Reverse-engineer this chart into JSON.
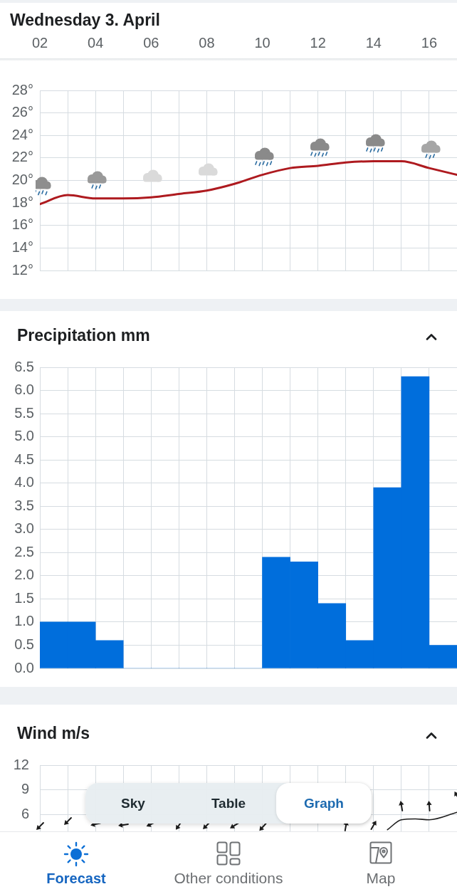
{
  "chart_data": [
    {
      "type": "line",
      "title": "Wednesday 3. April",
      "x": [
        2,
        3,
        4,
        5,
        6,
        7,
        8,
        9,
        10,
        11,
        12,
        13,
        14,
        15,
        16,
        17
      ],
      "series": [
        {
          "color": "#ae1a1f",
          "values": [
            17.9,
            18.7,
            18.4,
            18.4,
            18.5,
            18.8,
            19.1,
            19.7,
            20.5,
            21.1,
            21.3,
            21.6,
            21.7,
            21.7,
            21.1,
            20.5
          ]
        }
      ],
      "xlim": [
        2,
        17
      ],
      "xticks": [
        {
          "value": 2,
          "label": "02"
        },
        {
          "value": 3,
          "label": null
        },
        {
          "value": 4,
          "label": "04"
        },
        {
          "value": 5,
          "label": null
        },
        {
          "value": 6,
          "label": "06"
        },
        {
          "value": 7,
          "label": null
        },
        {
          "value": 8,
          "label": "08"
        },
        {
          "value": 9,
          "label": null
        },
        10,
        {
          "value": 11,
          "label": null
        },
        12,
        {
          "value": 13,
          "label": null
        },
        14,
        {
          "value": 15,
          "label": null
        },
        16,
        {
          "value": 17,
          "label": null
        }
      ],
      "ylim": [
        12,
        28
      ],
      "yticks": [
        {
          "value": 12,
          "label": "12°"
        },
        {
          "value": 14,
          "label": "14°"
        },
        {
          "value": 16,
          "label": "16°"
        },
        {
          "value": 18,
          "label": "18°"
        },
        {
          "value": 20,
          "label": "20°"
        },
        {
          "value": 22,
          "label": "22°"
        },
        {
          "value": 24,
          "label": "24°"
        },
        {
          "value": 26,
          "label": "26°"
        },
        {
          "value": 28,
          "label": "28°"
        }
      ],
      "grid": true,
      "marker": "none"
    },
    {
      "type": "bar",
      "title": "Precipitation mm",
      "categories": [
        null,
        null,
        null,
        null,
        null,
        null,
        null,
        null,
        null,
        null,
        null,
        null,
        null,
        null,
        null
      ],
      "values": [
        1.0,
        1.0,
        0.6,
        0,
        0,
        0,
        0,
        0,
        2.4,
        2.3,
        1.4,
        0.6,
        3.9,
        6.3,
        0.5
      ],
      "color": "#006edc",
      "ylim": [
        0,
        6.5
      ],
      "yticks": [
        {
          "value": 0,
          "label": "0.0"
        },
        0.5,
        {
          "value": 1,
          "label": "1.0"
        },
        1.5,
        {
          "value": 2,
          "label": "2.0"
        },
        2.5,
        {
          "value": 3,
          "label": "3.0"
        },
        3.5,
        {
          "value": 4,
          "label": "4.0"
        },
        4.5,
        {
          "value": 5,
          "label": "5.0"
        },
        5.5,
        {
          "value": 6,
          "label": "6.0"
        },
        6.5
      ],
      "grid": true
    },
    {
      "type": "line",
      "title": "Wind m/s",
      "series": [
        {
          "color": "#1e1e1e",
          "x": [
            14.5,
            15,
            15.5,
            16,
            17
          ],
          "values": [
            4.2,
            5.4,
            5.5,
            5.4,
            6.3
          ]
        }
      ],
      "xlim": [
        2,
        17
      ],
      "xticks": [
        2,
        3,
        4,
        5,
        6,
        7,
        8,
        9,
        10,
        11,
        12,
        13,
        14,
        15,
        16,
        17
      ],
      "tick_labels": "y",
      "ylim": [
        4,
        12
      ],
      "yticks": [
        6,
        9,
        12
      ],
      "grid": true,
      "marker": "none",
      "annotations": [
        "Sky",
        "Table",
        "Graph",
        "Forecast",
        "Other conditions",
        "Map"
      ]
    }
  ]
}
